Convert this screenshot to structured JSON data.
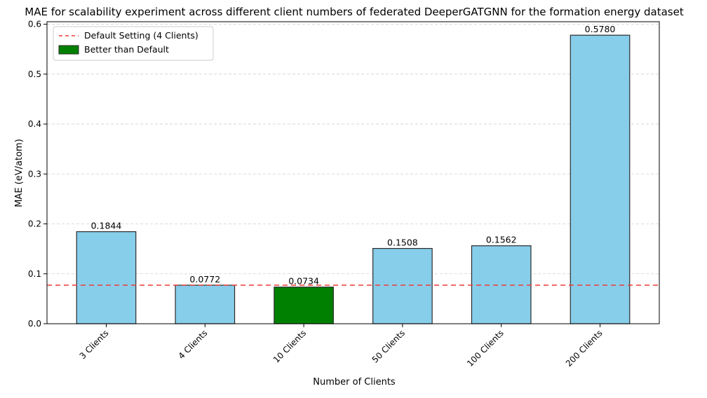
{
  "chart_data": {
    "type": "bar",
    "title": "MAE for scalability experiment across different client numbers of federated DeeperGATGNN for the formation energy dataset",
    "xlabel": "Number of Clients",
    "ylabel": "MAE (eV/atom)",
    "categories": [
      "3 Clients",
      "4 Clients",
      "10 Clients",
      "50 Clients",
      "100 Clients",
      "200 Clients"
    ],
    "values": [
      0.1844,
      0.0772,
      0.0734,
      0.1508,
      0.1562,
      0.578
    ],
    "data_labels": [
      "0.1844",
      "0.0772",
      "0.0734",
      "0.1508",
      "0.1562",
      "0.5780"
    ],
    "highlight": [
      false,
      false,
      true,
      false,
      false,
      false
    ],
    "ylim": [
      0,
      0.605
    ],
    "yticks": [
      0.0,
      0.1,
      0.2,
      0.3,
      0.4,
      0.5,
      0.6
    ],
    "ytick_labels": [
      "0.0",
      "0.1",
      "0.2",
      "0.3",
      "0.4",
      "0.5",
      "0.6"
    ],
    "grid": "y-dashed",
    "reference_line": {
      "label": "Default Setting (4 Clients)",
      "value": 0.0772,
      "style": "dashed",
      "color": "#ef3b36"
    },
    "legend": {
      "placement": "top-left",
      "entries": [
        {
          "label": "Default Setting (4 Clients)",
          "kind": "line",
          "color": "#ef3b36"
        },
        {
          "label": "Better than Default",
          "kind": "patch",
          "color": "#008000"
        }
      ]
    },
    "colors": {
      "default_bar": "#87ceeb",
      "better_bar": "#008000",
      "bar_edge": "#2b2b2b",
      "grid": "#d0d0d0"
    }
  }
}
